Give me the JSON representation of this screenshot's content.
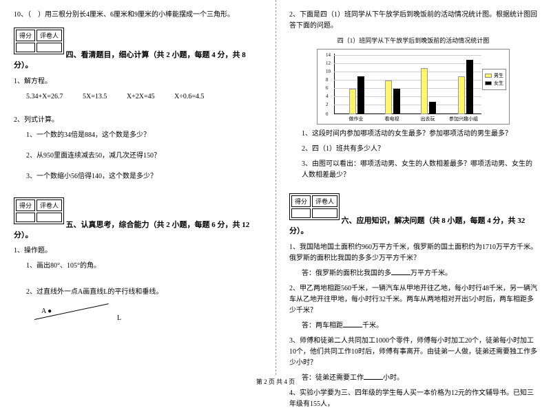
{
  "left": {
    "q10": "10、（　）用三根分别长4厘米、6厘米和9厘米的小棒能摆成一个三角形。",
    "score_h1": "得分",
    "score_h2": "评卷人",
    "sec4_title": "四、看清题目，细心计算（共 2 小题，每题 4 分，共 8",
    "fen": "分）。",
    "q4_1": "1、解方程。",
    "eq1": "5.34+X=26.7",
    "eq2": "5X=13.5",
    "eq3": "X+2X=45",
    "eq4": "X÷0.6=4.5",
    "q4_2": "2、列式计算。",
    "q4_2_1": "1、一个数的34倍是884，这个数是多少？",
    "q4_2_2": "2、从950里面连续减去50，减几次还得150？",
    "q4_2_3": "3、一个数缩小56倍得140，这个数是多少？",
    "sec5_title": "五、认真思考，综合能力（共 2 小题，每题 6 分，共 12",
    "q5_1": "1、操作题。",
    "q5_1_1": "1、画出80°、105°的角。",
    "q5_1_2": "2、过直线外一点A画直线L的平行线和垂线。",
    "pointA": "A",
    "dot": "●",
    "lineL": "L"
  },
  "right": {
    "q2_intro": "2、下面是四（1）班同学从下午放学后到晚饭前的活动情况统计图。根据统计图回答下面的问题。",
    "chart_title": "四（1）班同学从下午放学后到晚饭前的活动情况统计图",
    "yticks": [
      "14",
      "12",
      "10",
      "8",
      "6",
      "4",
      "2",
      "0"
    ],
    "xlabels": [
      "做作业",
      "看电视",
      "出去玩",
      "参加兴趣小组"
    ],
    "legend_m": "男生",
    "legend_f": "女生",
    "bars": {
      "m": [
        6,
        8,
        11,
        9
      ],
      "f": [
        9,
        6,
        3,
        13
      ]
    },
    "q2_1": "1、这段时间内参加哪项活动的女生最多？参加哪项活动的男生最多？",
    "q2_2": "2、四（1）班共有多少人？",
    "q2_3": "3、由图可以看出：哪项活动男、女生的人数相差最多？哪项活动男、女生的人数相差最少？",
    "score_h1": "得分",
    "score_h2": "评卷人",
    "sec6_title": "六、应用知识，解决问题（共 8 小题，每题 4 分，共 32",
    "fen": "分）。",
    "q6_1": "1、我国陆地国土面积约960万平方千米，俄罗斯的国土面积约为1710万平方千米。俄罗斯的面积比我国的多多少万平方千米？",
    "a6_1a": "答：俄罗斯的面积比我国的多",
    "a6_1b": "万平方千米。",
    "q6_2": "2、甲乙两地相距560千米，一辆汽车从甲地开往乙地，每小时行48千米，另一辆汽车从乙地开往甲地，每小时行32千米。两车从两地相对开出5小时后，两车相距多少千米？",
    "a6_2a": "答：两车相距",
    "a6_2b": "千米。",
    "q6_3": "3、师傅和徒弟二人共同加工1000个零件，师傅每小时加工20个，徒弟每小时加工10个，他们共同工作10时后，师傅有事离开。由徒弟一人做，徒弟还需要独工作多少小时？",
    "a6_3a": "答：徒弟还需要工作",
    "a6_3b": "小时。",
    "q6_4": "4、实验小学要为三、四年级的学生每人买一本价格为12元的作文辅导书。已知三年级有155人，"
  },
  "footer": "第 2 页 共 4 页"
}
